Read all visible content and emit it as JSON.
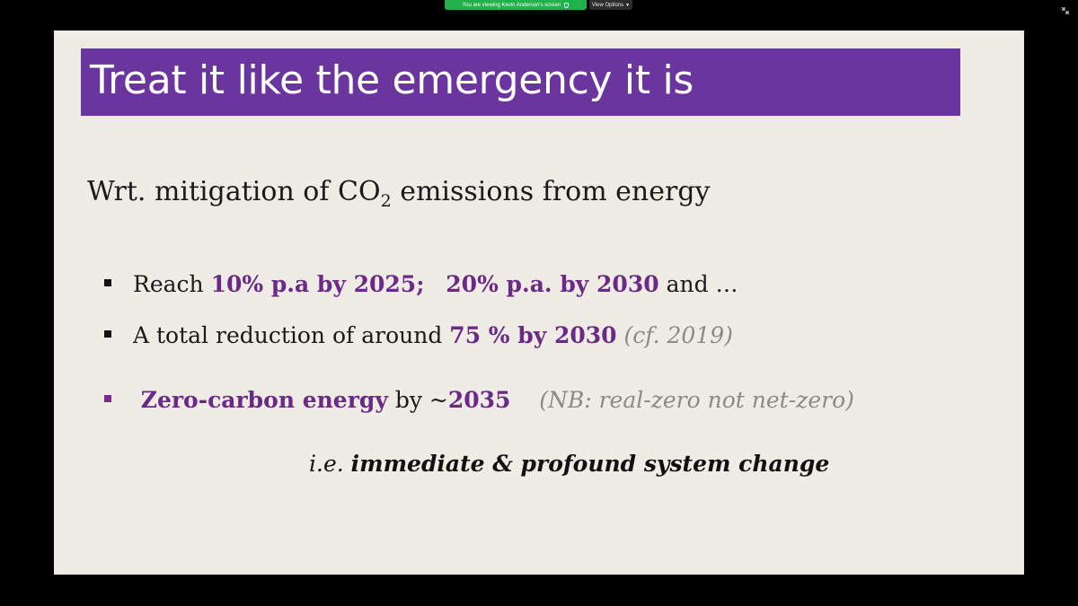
{
  "zoom": {
    "share_notice": "You are viewing Kevin Anderson's screen",
    "view_options_label": "View Options",
    "view_options_icon": "chevron-down-icon",
    "security_icon": "shield-icon",
    "exit_fullscreen_icon": "exit-fullscreen-icon",
    "colors": {
      "notice_bg": "#21b04a",
      "options_bg": "#2d2d2d"
    }
  },
  "slide": {
    "title": "Treat it like the emergency it is",
    "subhead": {
      "prefix": "Wrt. mitigation of CO",
      "subscript": "2",
      "suffix": " emissions from energy"
    },
    "bullets": [
      {
        "parts": [
          {
            "text": "Reach ",
            "style": "normal"
          },
          {
            "text": "10% p.a by 2025;",
            "style": "highlight"
          },
          {
            "text": "   ",
            "style": "normal"
          },
          {
            "text": "20% p.a. by 2030",
            "style": "highlight"
          },
          {
            "text": " and …",
            "style": "normal"
          }
        ]
      },
      {
        "parts": [
          {
            "text": "A total reduction of around ",
            "style": "normal"
          },
          {
            "text": "75 % by 2030",
            "style": "highlight"
          },
          {
            "text": " ",
            "style": "normal"
          },
          {
            "text": "(cf. 2019)",
            "style": "note"
          }
        ]
      },
      {
        "parts": [
          {
            "text": " Zero-carbon energy",
            "style": "highlight"
          },
          {
            "text": " by ~",
            "style": "normal"
          },
          {
            "text": "2035",
            "style": "highlight"
          },
          {
            "text": "    ",
            "style": "normal"
          },
          {
            "text": "(NB: real-zero not net-zero)",
            "style": "note"
          }
        ]
      }
    ],
    "conclusion": {
      "prefix": "i.e. ",
      "emphasis": "immediate & profound system change"
    },
    "colors": {
      "background": "#efebe5",
      "title_band": "#6a359c",
      "highlight": "#6b2a85",
      "note": "#8a8a8a"
    }
  }
}
